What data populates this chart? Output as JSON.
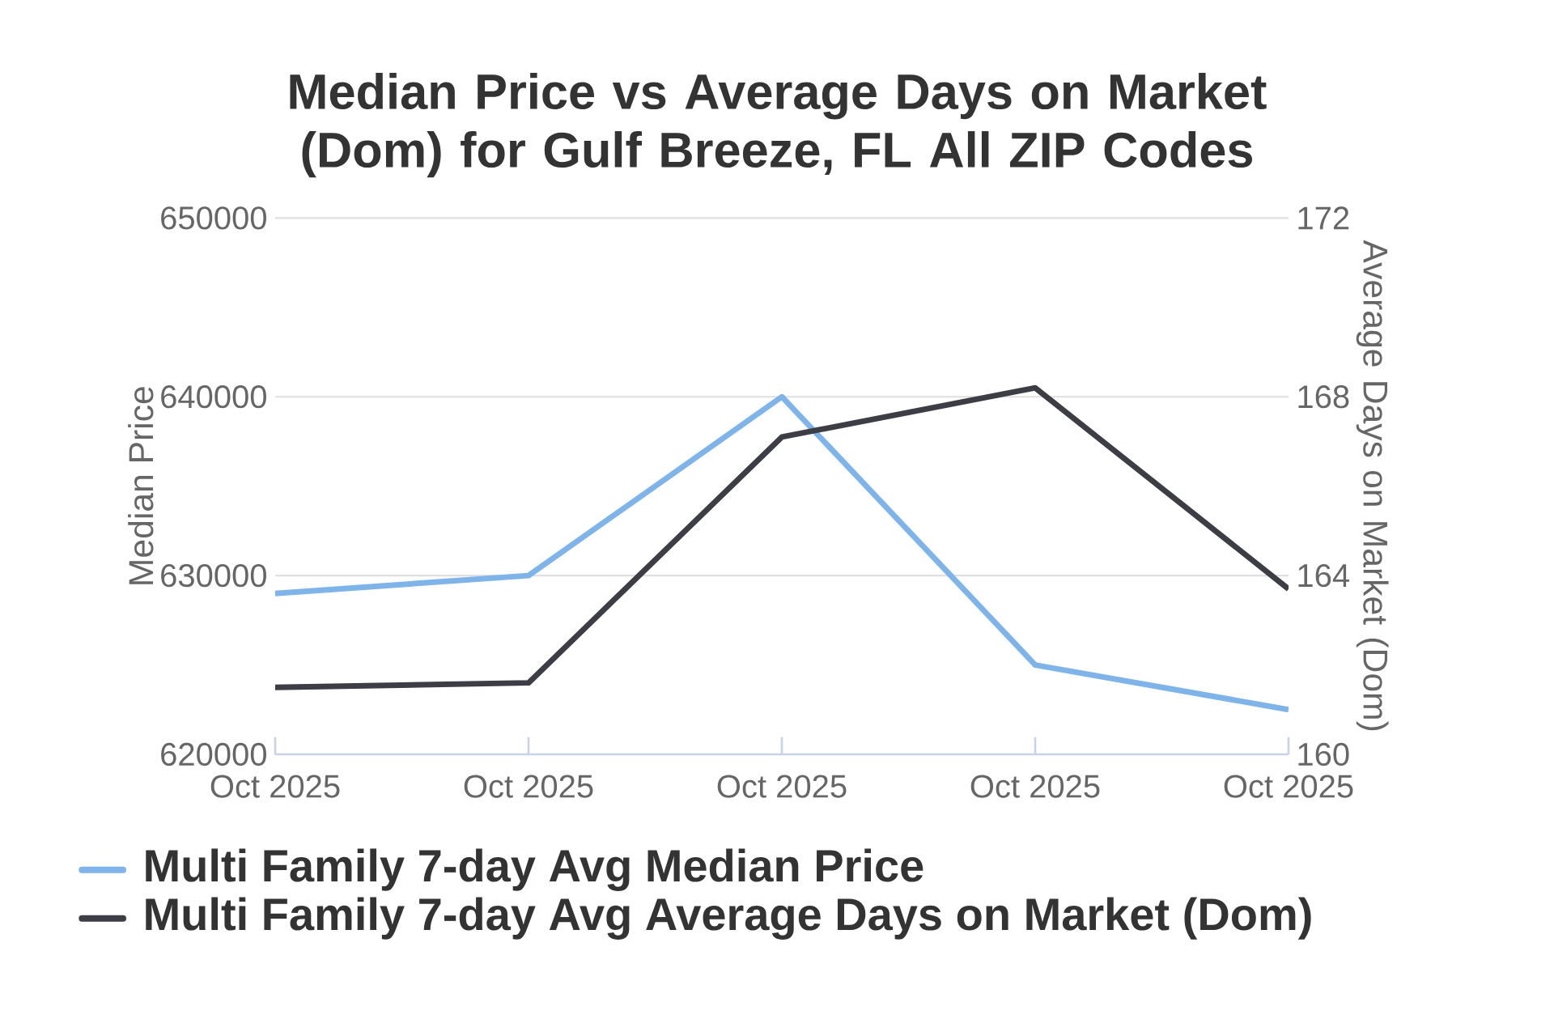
{
  "chart_data": {
    "type": "line",
    "title": "Median Price vs Average Days on Market (Dom) for Gulf Breeze, FL All ZIP Codes",
    "categories": [
      "Oct 2025",
      "Oct 2025",
      "Oct 2025",
      "Oct 2025",
      "Oct 2025"
    ],
    "ylabel": "Median Price",
    "y2label": "Average Days on Market (Dom)",
    "ylim": [
      620000,
      650000
    ],
    "yticks": [
      620000,
      630000,
      640000,
      650000
    ],
    "y2lim": [
      160,
      172
    ],
    "y2ticks": [
      160,
      164,
      168,
      172
    ],
    "grid": "y",
    "legend": "bottom",
    "series": [
      {
        "name": "Multi Family 7-day Avg Median Price",
        "color": "#7eb4ea",
        "values": [
          629000,
          630000,
          640000,
          625000,
          622500
        ]
      },
      {
        "name": "Multi Family 7-day Avg Average Days on Market (Dom)",
        "color": "#3d3d45",
        "axis": "y2",
        "values": [
          161.5,
          161.6,
          167.1,
          168.2,
          163.7
        ]
      }
    ]
  }
}
